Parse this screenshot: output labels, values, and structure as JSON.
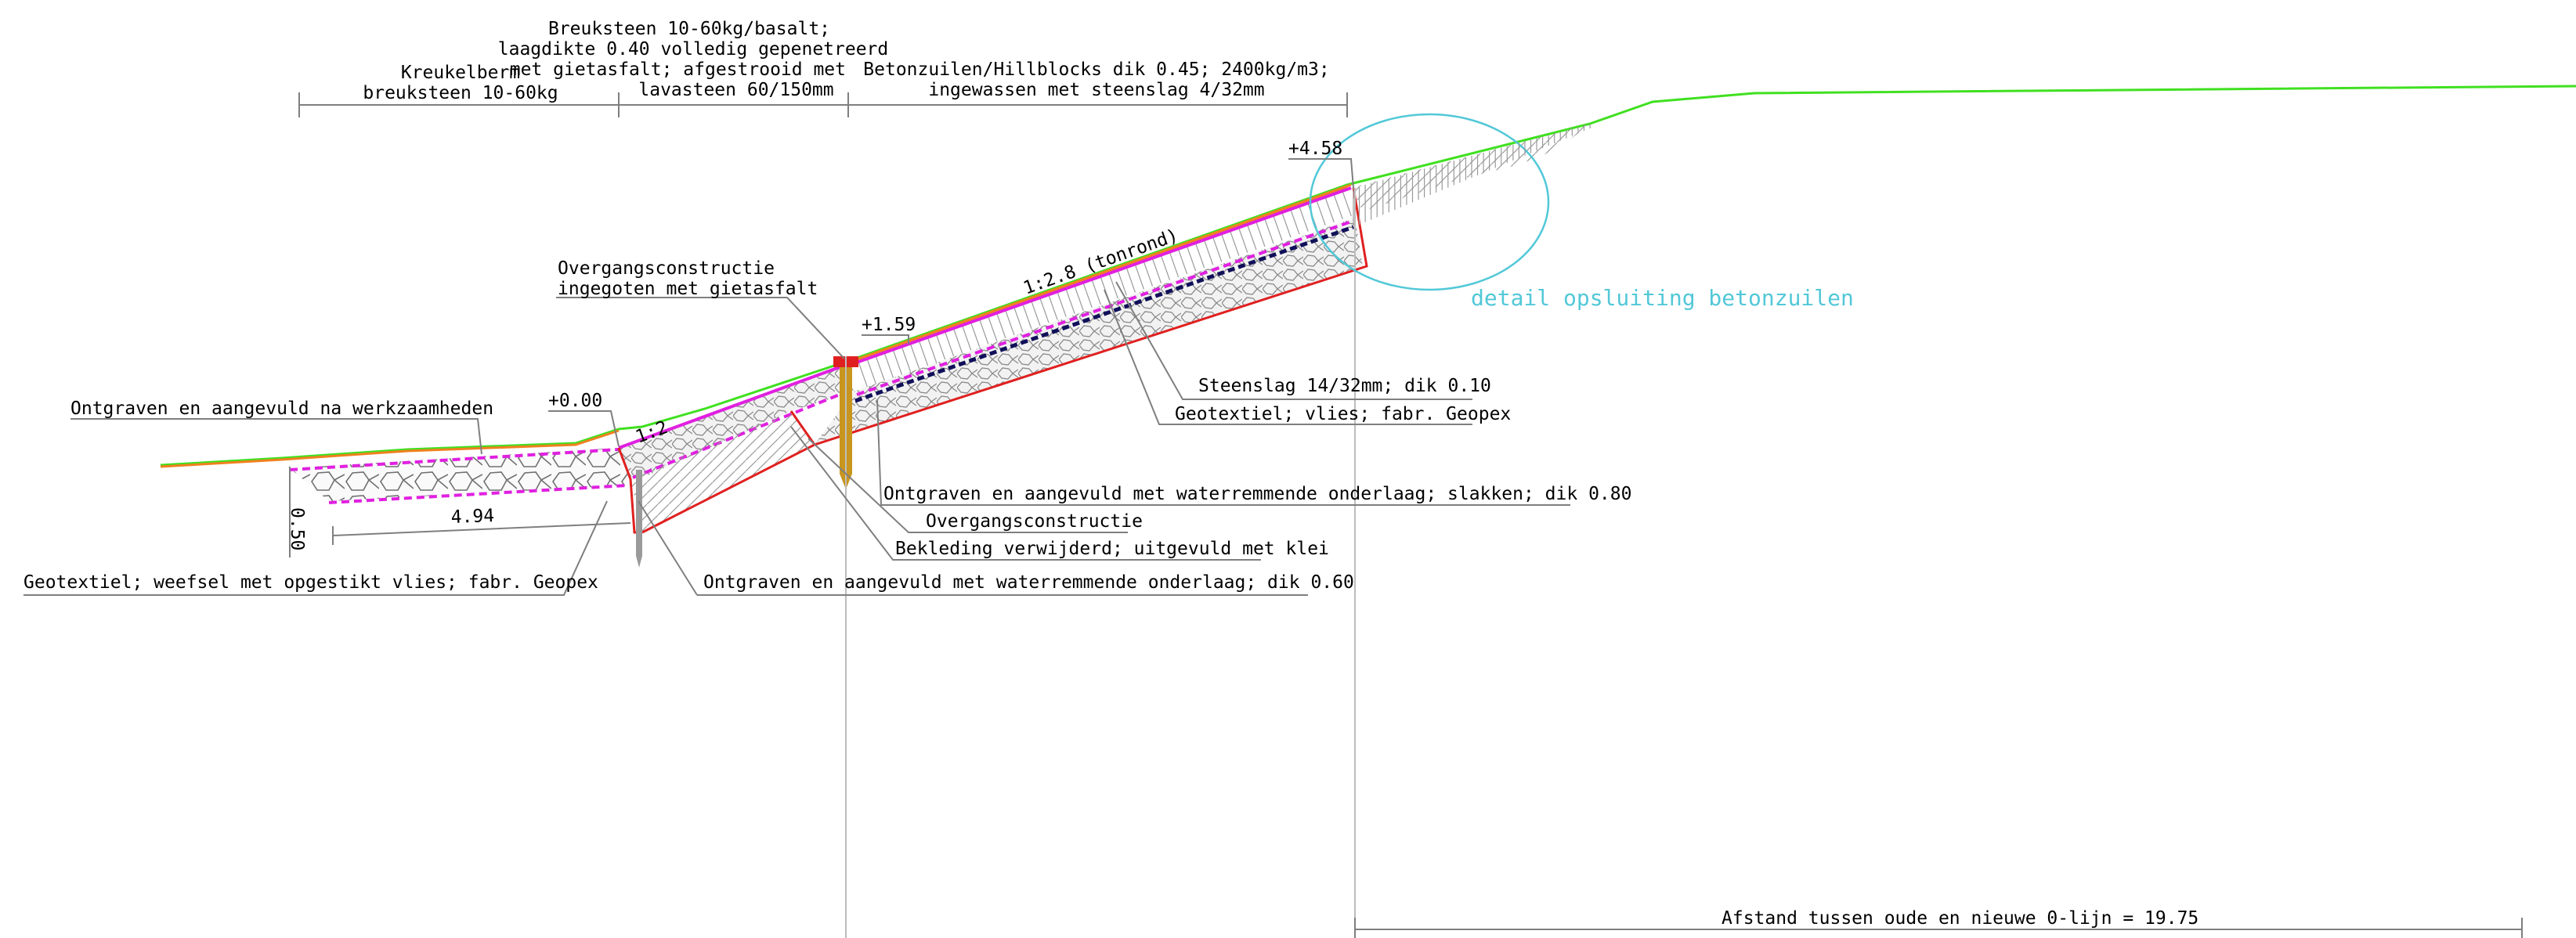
{
  "labels": {
    "kreukelberm_title": "Kreukelberm",
    "kreukelberm_material": "breuksteen 10-60kg",
    "breuksteen_line1": "Breuksteen 10-60kg/basalt;",
    "breuksteen_line2": "laagdikte 0.40 volledig gepenetreerd",
    "breuksteen_line3": "met gietasfalt; afgestrooid met",
    "breuksteen_line4": "lavasteen 60/150mm",
    "betonzuilen_line1": "Betonzuilen/Hillblocks dik 0.45; 2400kg/m3;",
    "betonzuilen_line2": "ingewassen met steenslag 4/32mm",
    "level_top": "+4.58",
    "slope_upper": "1:2.8 (tonrond)",
    "slope_lower": "1:2",
    "overgang_line1": "Overgangsconstructie",
    "overgang_line2": "ingegoten met gietasfalt",
    "level_mid": "+1.59",
    "level_zero": "+0.00",
    "ontgraven_werkzaamheden": "Ontgraven en aangevuld na werkzaamheden",
    "steenslag": "Steenslag 14/32mm; dik 0.10",
    "geotextiel_vlies": "Geotextiel; vlies; fabr. Geopex",
    "ontgraven_slakken": "Ontgraven en aangevuld met waterremmende onderlaag; slakken; dik 0.80",
    "overgangsconstructie": "Overgangsconstructie",
    "bekleding": "Bekleding verwijderd; uitgevuld met klei",
    "geotextiel_weefsel": "Geotextiel; weefsel met opgestikt vlies; fabr. Geopex",
    "ontgraven_060": "Ontgraven en aangevuld met waterremmende onderlaag; dik 0.60",
    "dim_494": "4.94",
    "dim_050": "0.50",
    "detail": "detail opsluiting betonzuilen",
    "afstand": "Afstand tussen oude en nieuwe 0-lijn = 19.75"
  },
  "colors": {
    "outline": "#e02020",
    "filter_layer": "#e020e0",
    "old_profile": "#40e020",
    "surface": "#f08020",
    "detail_circle": "#52c8d8",
    "geotextile": "#10105a",
    "transition_post": "#c8961e"
  }
}
